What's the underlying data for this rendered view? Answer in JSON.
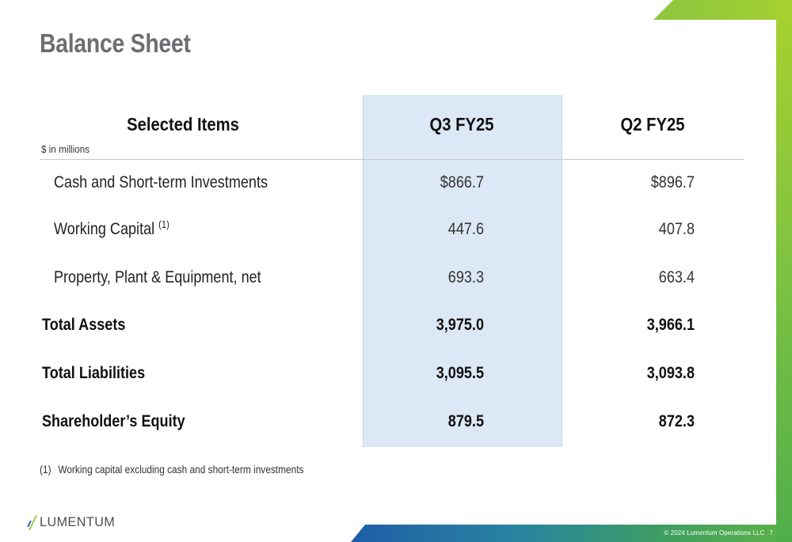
{
  "slide": {
    "title": "Balance Sheet",
    "copyright": "© 2024 Lumentum Operations LLC",
    "page_number": "7",
    "logo_text": "LUMENTUM"
  },
  "table": {
    "header": {
      "items": "Selected Items",
      "units": "$ in millions",
      "col1": "Q3 FY25",
      "col2": "Q2 FY25"
    },
    "rows": [
      {
        "label": "Cash and Short-term Investments",
        "note": "",
        "q3": "$866.7",
        "q2": "$896.7",
        "bold": false
      },
      {
        "label": "Working Capital",
        "note": "(1)",
        "q3": "447.6",
        "q2": "407.8",
        "bold": false
      },
      {
        "label": "Property, Plant & Equipment, net",
        "note": "",
        "q3": "693.3",
        "q2": "663.4",
        "bold": false
      },
      {
        "label": "Total Assets",
        "note": "",
        "q3": "3,975.0",
        "q2": "3,966.1",
        "bold": true
      },
      {
        "label": "Total Liabilities",
        "note": "",
        "q3": "3,095.5",
        "q2": "3,093.8",
        "bold": true
      },
      {
        "label": "Shareholder’s Equity",
        "note": "",
        "q3": "879.5",
        "q2": "872.3",
        "bold": true
      }
    ],
    "highlight_color": "#dde8f7"
  },
  "footnote": {
    "marker": "(1)",
    "text": "Working capital excluding cash and short-term investments"
  },
  "colors": {
    "title": "#6d6e71",
    "accent_green": "#7ec242",
    "accent_blue": "#1f5ea8"
  }
}
